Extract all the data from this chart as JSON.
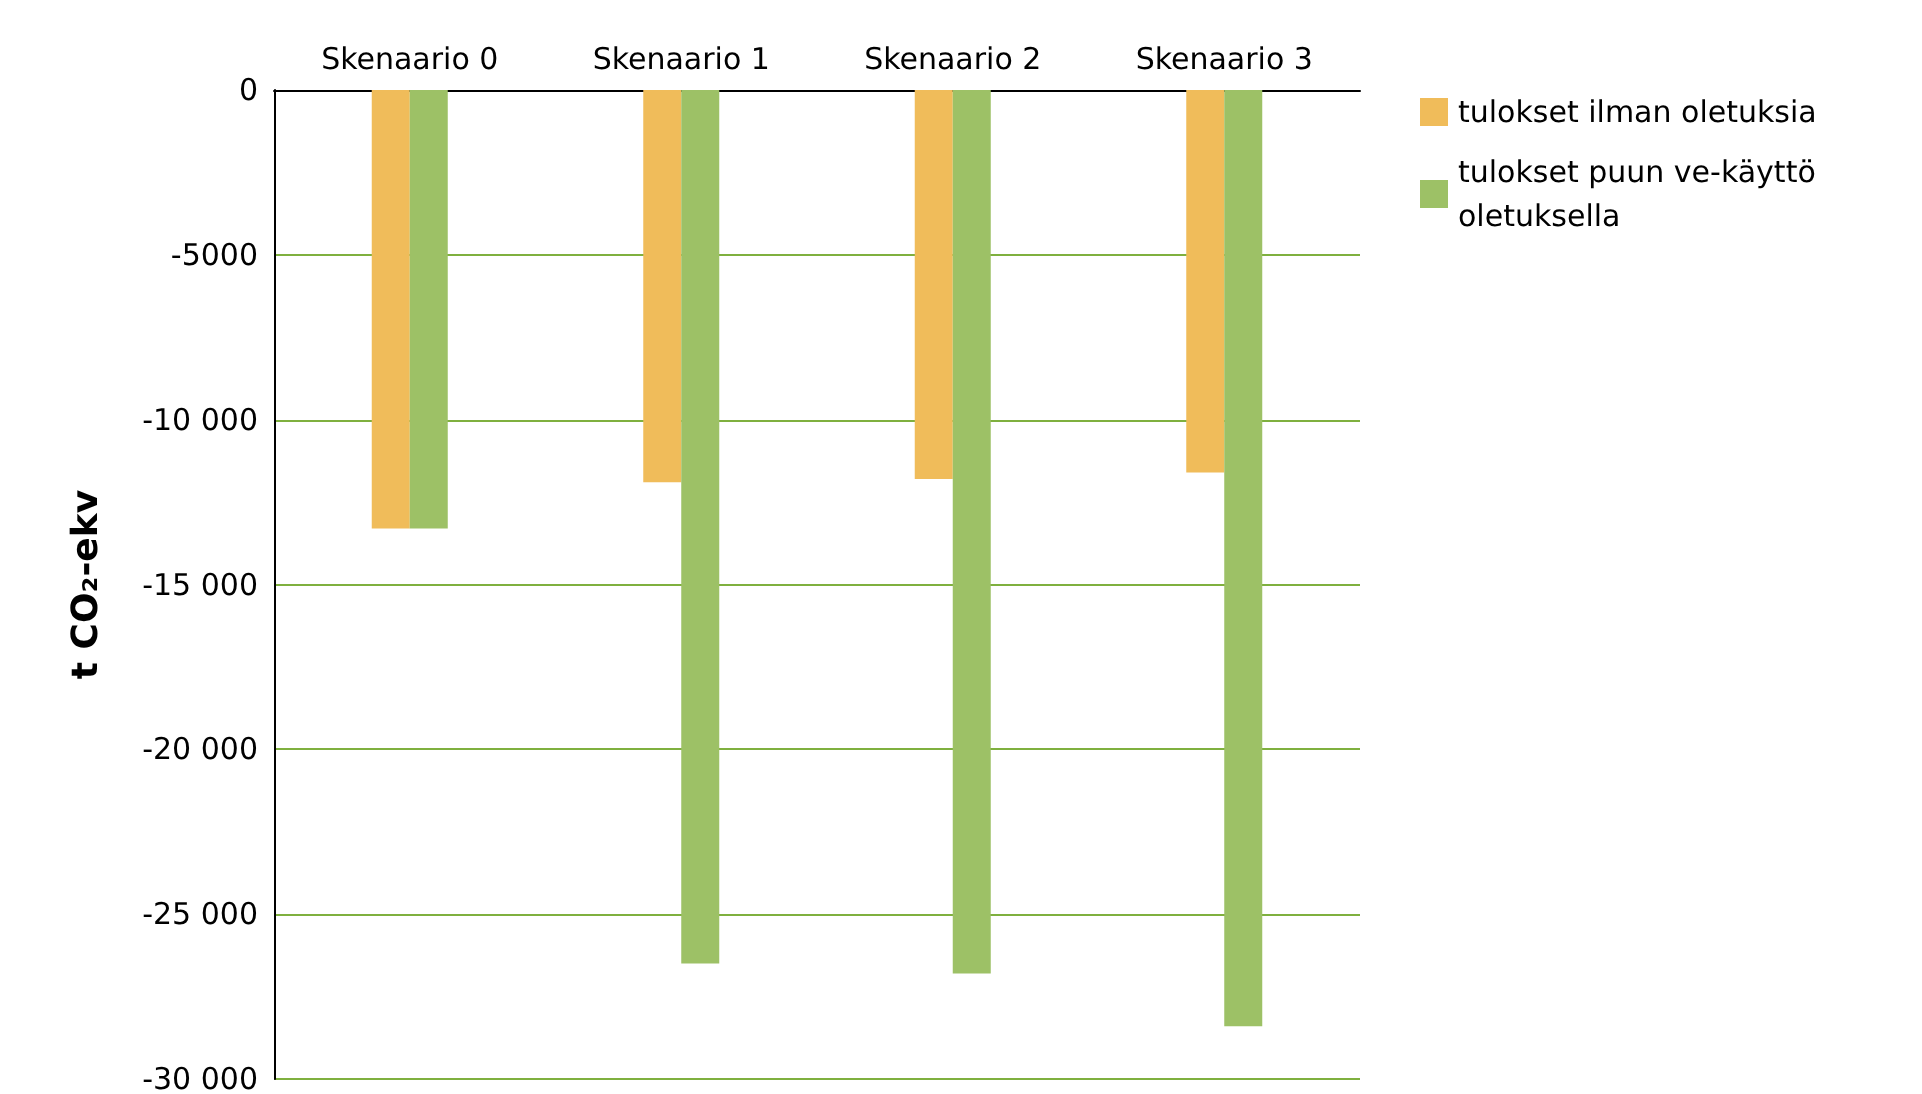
{
  "chart_data": {
    "type": "bar",
    "ylabel": "t CO₂-ekv",
    "categories": [
      "Skenaario 0",
      "Skenaario 1",
      "Skenaario 2",
      "Skenaario 3"
    ],
    "series": [
      {
        "name": "tulokset ilman oletuksia",
        "color": "#f0bc5a",
        "values": [
          -13300,
          -11900,
          -11800,
          -11600
        ]
      },
      {
        "name": "tulokset puun ve-käyttö oletuksella",
        "color": "#9dc166",
        "values": [
          -13300,
          -26500,
          -26800,
          -28400
        ]
      }
    ],
    "ylim": [
      -30000,
      0
    ],
    "yticks": [
      0,
      -5000,
      {
        "value": -10000,
        "label": "-10 000"
      },
      {
        "value": -15000,
        "label": "-15 000"
      },
      {
        "value": -20000,
        "label": "-20 000"
      },
      {
        "value": -25000,
        "label": "-25 000"
      },
      {
        "value": -30000,
        "label": "-30 000"
      }
    ],
    "grid": "y",
    "legend": "top right"
  }
}
